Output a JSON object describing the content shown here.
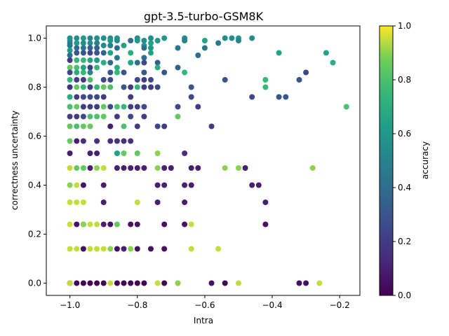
{
  "chart_data": {
    "type": "scatter",
    "title": "gpt-3.5-turbo-GSM8K",
    "xlabel": "Intra",
    "ylabel": "correctness uncertainty",
    "xlim": [
      -1.07,
      -0.14
    ],
    "ylim": [
      -0.05,
      1.05
    ],
    "x_ticks": [
      -1.0,
      -0.8,
      -0.6,
      -0.4,
      -0.2
    ],
    "x_tick_labels": [
      "−1.0",
      "−0.8",
      "−0.6",
      "−0.4",
      "−0.2"
    ],
    "y_ticks": [
      0.0,
      0.2,
      0.4,
      0.6,
      0.8,
      1.0
    ],
    "y_tick_labels": [
      "0.0",
      "0.2",
      "0.4",
      "0.6",
      "0.8",
      "1.0"
    ],
    "grid": false,
    "colorbar": {
      "label": "accuracy",
      "range": [
        0.0,
        1.0
      ],
      "ticks": [
        0.0,
        0.2,
        0.4,
        0.6,
        0.8,
        1.0
      ],
      "tick_labels": [
        "0.0",
        "0.2",
        "0.4",
        "0.6",
        "0.8",
        "1.0"
      ],
      "colormap": "viridis"
    },
    "points": [
      [
        -1.0,
        1.0,
        0.55
      ],
      [
        -1.0,
        0.99,
        0.6
      ],
      [
        -1.0,
        0.98,
        0.5
      ],
      [
        -1.0,
        0.97,
        0.45
      ],
      [
        -1.0,
        0.95,
        0.6
      ],
      [
        -1.0,
        0.93,
        0.4
      ],
      [
        -1.0,
        0.91,
        0.2
      ],
      [
        -1.0,
        0.88,
        0.85
      ],
      [
        -1.0,
        0.86,
        0.25
      ],
      [
        -1.0,
        0.83,
        0.75
      ],
      [
        -1.0,
        0.8,
        0.15
      ],
      [
        -1.0,
        0.76,
        0.7
      ],
      [
        -1.0,
        0.72,
        0.8
      ],
      [
        -1.0,
        0.68,
        0.2
      ],
      [
        -1.0,
        0.64,
        0.85
      ],
      [
        -1.0,
        0.58,
        0.85
      ],
      [
        -1.0,
        0.53,
        0.1
      ],
      [
        -1.0,
        0.47,
        0.95
      ],
      [
        -1.0,
        0.4,
        0.9
      ],
      [
        -1.0,
        0.33,
        0.95
      ],
      [
        -1.0,
        0.24,
        0.95
      ],
      [
        -1.0,
        0.14,
        0.95
      ],
      [
        -1.0,
        0.0,
        0.0
      ],
      [
        -1.0,
        0.0,
        0.95
      ],
      [
        -0.98,
        1.0,
        0.55
      ],
      [
        -0.98,
        0.98,
        0.6
      ],
      [
        -0.98,
        0.96,
        0.4
      ],
      [
        -0.98,
        0.94,
        0.3
      ],
      [
        -0.98,
        0.91,
        0.75
      ],
      [
        -0.98,
        0.88,
        0.8
      ],
      [
        -0.98,
        0.86,
        0.7
      ],
      [
        -0.98,
        0.83,
        0.2
      ],
      [
        -0.98,
        0.8,
        0.85
      ],
      [
        -0.98,
        0.76,
        0.2
      ],
      [
        -0.98,
        0.72,
        0.85
      ],
      [
        -0.98,
        0.68,
        0.2
      ],
      [
        -0.98,
        0.64,
        0.8
      ],
      [
        -0.98,
        0.58,
        0.1
      ],
      [
        -0.98,
        0.47,
        0.85
      ],
      [
        -0.98,
        0.4,
        0.95
      ],
      [
        -0.98,
        0.33,
        0.95
      ],
      [
        -0.98,
        0.24,
        0.05
      ],
      [
        -0.98,
        0.14,
        0.95
      ],
      [
        -0.98,
        0.0,
        0.0
      ],
      [
        -0.96,
        1.0,
        0.6
      ],
      [
        -0.96,
        0.98,
        0.55
      ],
      [
        -0.96,
        0.96,
        0.45
      ],
      [
        -0.96,
        0.94,
        0.3
      ],
      [
        -0.96,
        0.91,
        0.75
      ],
      [
        -0.96,
        0.88,
        0.65
      ],
      [
        -0.96,
        0.86,
        0.75
      ],
      [
        -0.96,
        0.83,
        0.2
      ],
      [
        -0.96,
        0.8,
        0.75
      ],
      [
        -0.96,
        0.76,
        0.25
      ],
      [
        -0.96,
        0.72,
        0.2
      ],
      [
        -0.96,
        0.68,
        0.25
      ],
      [
        -0.96,
        0.64,
        0.85
      ],
      [
        -0.96,
        0.58,
        0.15
      ],
      [
        -0.96,
        0.47,
        0.85
      ],
      [
        -0.96,
        0.4,
        0.05
      ],
      [
        -0.96,
        0.33,
        0.95
      ],
      [
        -0.96,
        0.24,
        0.2
      ],
      [
        -0.96,
        0.24,
        0.9
      ],
      [
        -0.96,
        0.14,
        0.05
      ],
      [
        -0.96,
        0.0,
        0.0
      ],
      [
        -0.94,
        1.0,
        0.5
      ],
      [
        -0.94,
        0.98,
        0.55
      ],
      [
        -0.94,
        0.96,
        0.35
      ],
      [
        -0.94,
        0.94,
        0.25
      ],
      [
        -0.94,
        0.91,
        0.65
      ],
      [
        -0.94,
        0.88,
        0.2
      ],
      [
        -0.94,
        0.86,
        0.5
      ],
      [
        -0.94,
        0.83,
        0.8
      ],
      [
        -0.94,
        0.8,
        0.2
      ],
      [
        -0.94,
        0.76,
        0.25
      ],
      [
        -0.94,
        0.72,
        0.2
      ],
      [
        -0.94,
        0.68,
        0.8
      ],
      [
        -0.94,
        0.64,
        0.85
      ],
      [
        -0.94,
        0.53,
        0.1
      ],
      [
        -0.94,
        0.47,
        0.1
      ],
      [
        -0.94,
        0.24,
        0.95
      ],
      [
        -0.94,
        0.14,
        0.95
      ],
      [
        -0.94,
        0.0,
        0.0
      ],
      [
        -0.92,
        1.0,
        0.55
      ],
      [
        -0.92,
        0.98,
        0.5
      ],
      [
        -0.92,
        0.96,
        0.35
      ],
      [
        -0.92,
        0.94,
        0.3
      ],
      [
        -0.92,
        0.91,
        0.6
      ],
      [
        -0.92,
        0.88,
        0.75
      ],
      [
        -0.92,
        0.8,
        0.75
      ],
      [
        -0.92,
        0.76,
        0.25
      ],
      [
        -0.92,
        0.72,
        0.2
      ],
      [
        -0.92,
        0.68,
        0.8
      ],
      [
        -0.92,
        0.58,
        0.15
      ],
      [
        -0.92,
        0.53,
        0.1
      ],
      [
        -0.92,
        0.47,
        0.9
      ],
      [
        -0.92,
        0.24,
        0.95
      ],
      [
        -0.92,
        0.14,
        0.95
      ],
      [
        -0.92,
        0.0,
        0.0
      ],
      [
        -0.9,
        1.0,
        0.55
      ],
      [
        -0.9,
        0.97,
        0.55
      ],
      [
        -0.9,
        0.94,
        0.35
      ],
      [
        -0.9,
        0.9,
        0.7
      ],
      [
        -0.9,
        0.83,
        0.25
      ],
      [
        -0.9,
        0.8,
        0.85
      ],
      [
        -0.9,
        0.76,
        0.2
      ],
      [
        -0.9,
        0.72,
        0.85
      ],
      [
        -0.9,
        0.68,
        0.85
      ],
      [
        -0.9,
        0.47,
        0.95
      ],
      [
        -0.9,
        0.4,
        0.1
      ],
      [
        -0.9,
        0.33,
        0.1
      ],
      [
        -0.9,
        0.24,
        0.1
      ],
      [
        -0.9,
        0.14,
        0.95
      ],
      [
        -0.9,
        0.0,
        0.0
      ],
      [
        -0.88,
        1.0,
        0.55
      ],
      [
        -0.88,
        0.99,
        0.6
      ],
      [
        -0.88,
        0.97,
        0.5
      ],
      [
        -0.88,
        0.94,
        0.65
      ],
      [
        -0.88,
        0.9,
        0.4
      ],
      [
        -0.88,
        0.86,
        0.3
      ],
      [
        -0.88,
        0.83,
        0.25
      ],
      [
        -0.88,
        0.8,
        0.8
      ],
      [
        -0.88,
        0.72,
        0.25
      ],
      [
        -0.88,
        0.64,
        0.1
      ],
      [
        -0.88,
        0.58,
        0.15
      ],
      [
        -0.88,
        0.24,
        0.05
      ],
      [
        -0.88,
        0.14,
        0.9
      ],
      [
        -0.88,
        0.0,
        0.95
      ],
      [
        -0.86,
        1.0,
        0.6
      ],
      [
        -0.86,
        0.99,
        0.55
      ],
      [
        -0.86,
        0.96,
        0.4
      ],
      [
        -0.86,
        0.92,
        0.45
      ],
      [
        -0.86,
        0.88,
        0.7
      ],
      [
        -0.86,
        0.86,
        0.75
      ],
      [
        -0.86,
        0.72,
        0.8
      ],
      [
        -0.86,
        0.68,
        0.2
      ],
      [
        -0.86,
        0.58,
        0.15
      ],
      [
        -0.86,
        0.53,
        0.75
      ],
      [
        -0.86,
        0.53,
        0.65
      ],
      [
        -0.86,
        0.47,
        0.1
      ],
      [
        -0.86,
        0.24,
        0.85
      ],
      [
        -0.86,
        0.14,
        0.05
      ],
      [
        -0.86,
        0.0,
        0.0
      ],
      [
        -0.84,
        0.97,
        0.65
      ],
      [
        -0.84,
        0.86,
        0.3
      ],
      [
        -0.84,
        0.8,
        0.3
      ],
      [
        -0.84,
        0.72,
        0.75
      ],
      [
        -0.84,
        0.64,
        0.8
      ],
      [
        -0.84,
        0.58,
        0.15
      ],
      [
        -0.84,
        0.53,
        0.85
      ],
      [
        -0.84,
        0.47,
        0.1
      ],
      [
        -0.84,
        0.14,
        0.1
      ],
      [
        -0.84,
        0.0,
        0.0
      ],
      [
        -0.82,
        0.99,
        0.4
      ],
      [
        -0.82,
        0.94,
        0.7
      ],
      [
        -0.82,
        0.9,
        0.65
      ],
      [
        -0.82,
        0.8,
        0.2
      ],
      [
        -0.82,
        0.76,
        0.2
      ],
      [
        -0.82,
        0.72,
        0.2
      ],
      [
        -0.82,
        0.68,
        0.25
      ],
      [
        -0.82,
        0.58,
        0.15
      ],
      [
        -0.82,
        0.47,
        0.1
      ],
      [
        -0.82,
        0.24,
        0.05
      ],
      [
        -0.82,
        0.14,
        0.9
      ],
      [
        -0.82,
        0.0,
        0.0
      ],
      [
        -0.8,
        1.0,
        0.55
      ],
      [
        -0.8,
        0.99,
        0.6
      ],
      [
        -0.8,
        0.9,
        0.4
      ],
      [
        -0.8,
        0.83,
        0.25
      ],
      [
        -0.8,
        0.8,
        0.75
      ],
      [
        -0.8,
        0.72,
        0.2
      ],
      [
        -0.8,
        0.64,
        0.2
      ],
      [
        -0.8,
        0.53,
        0.85
      ],
      [
        -0.8,
        0.47,
        0.1
      ],
      [
        -0.8,
        0.33,
        0.95
      ],
      [
        -0.8,
        0.24,
        0.05
      ],
      [
        -0.8,
        0.14,
        0.05
      ],
      [
        -0.8,
        0.0,
        0.0
      ],
      [
        -0.78,
        0.99,
        0.55
      ],
      [
        -0.78,
        0.97,
        0.6
      ],
      [
        -0.78,
        0.96,
        0.4
      ],
      [
        -0.78,
        0.92,
        0.4
      ],
      [
        -0.78,
        0.9,
        0.25
      ],
      [
        -0.78,
        0.86,
        0.3
      ],
      [
        -0.78,
        0.83,
        0.2
      ],
      [
        -0.78,
        0.8,
        0.2
      ],
      [
        -0.78,
        0.72,
        0.25
      ],
      [
        -0.78,
        0.68,
        0.2
      ],
      [
        -0.78,
        0.47,
        0.1
      ],
      [
        -0.78,
        0.0,
        0.0
      ],
      [
        -0.76,
        1.0,
        0.55
      ],
      [
        -0.76,
        0.98,
        0.65
      ],
      [
        -0.76,
        0.96,
        0.6
      ],
      [
        -0.76,
        0.94,
        0.65
      ],
      [
        -0.76,
        0.83,
        0.25
      ],
      [
        -0.76,
        0.8,
        0.2
      ],
      [
        -0.76,
        0.14,
        0.05
      ],
      [
        -0.74,
        0.99,
        0.6
      ],
      [
        -0.74,
        0.9,
        0.35
      ],
      [
        -0.74,
        0.88,
        0.7
      ],
      [
        -0.74,
        0.8,
        0.25
      ],
      [
        -0.74,
        0.64,
        0.25
      ],
      [
        -0.74,
        0.53,
        0.9
      ],
      [
        -0.74,
        0.47,
        0.9
      ],
      [
        -0.74,
        0.4,
        0.1
      ],
      [
        -0.74,
        0.33,
        0.1
      ],
      [
        -0.74,
        0.0,
        0.95
      ],
      [
        -0.72,
        1.0,
        0.6
      ],
      [
        -0.72,
        0.86,
        0.3
      ],
      [
        -0.72,
        0.64,
        0.2
      ],
      [
        -0.72,
        0.47,
        0.1
      ],
      [
        -0.72,
        0.4,
        0.1
      ],
      [
        -0.72,
        0.24,
        0.05
      ],
      [
        -0.72,
        0.14,
        0.05
      ],
      [
        -0.72,
        0.0,
        0.0
      ],
      [
        -0.7,
        0.47,
        0.1
      ],
      [
        -0.68,
        0.96,
        0.45
      ],
      [
        -0.68,
        0.88,
        0.35
      ],
      [
        -0.68,
        0.72,
        0.25
      ],
      [
        -0.68,
        0.68,
        0.85
      ],
      [
        -0.68,
        0.0,
        0.95
      ],
      [
        -0.68,
        0.0,
        0.9
      ],
      [
        -0.66,
        1.0,
        0.55
      ],
      [
        -0.66,
        0.99,
        0.5
      ],
      [
        -0.66,
        0.86,
        0.75
      ],
      [
        -0.66,
        0.53,
        0.15
      ],
      [
        -0.66,
        0.4,
        0.1
      ],
      [
        -0.66,
        0.33,
        0.1
      ],
      [
        -0.66,
        0.24,
        0.05
      ],
      [
        -0.64,
        0.8,
        0.3
      ],
      [
        -0.64,
        0.76,
        0.25
      ],
      [
        -0.64,
        0.47,
        0.1
      ],
      [
        -0.64,
        0.4,
        0.1
      ],
      [
        -0.64,
        0.24,
        0.95
      ],
      [
        -0.64,
        0.14,
        0.95
      ],
      [
        -0.62,
        0.93,
        0.4
      ],
      [
        -0.62,
        0.72,
        0.2
      ],
      [
        -0.62,
        0.47,
        0.1
      ],
      [
        -0.6,
        0.99,
        0.65
      ],
      [
        -0.6,
        0.96,
        0.45
      ],
      [
        -0.58,
        0.64,
        0.2
      ],
      [
        -0.58,
        0.0,
        0.05
      ],
      [
        -0.56,
        0.98,
        0.45
      ],
      [
        -0.56,
        0.14,
        0.95
      ],
      [
        -0.54,
        1.0,
        0.55
      ],
      [
        -0.54,
        0.83,
        0.3
      ],
      [
        -0.54,
        0.47,
        0.9
      ],
      [
        -0.54,
        0.0,
        0.0
      ],
      [
        -0.52,
        1.0,
        0.55
      ],
      [
        -0.5,
        1.0,
        0.6
      ],
      [
        -0.5,
        0.99,
        0.5
      ],
      [
        -0.5,
        0.47,
        0.9
      ],
      [
        -0.5,
        0.0,
        0.95
      ],
      [
        -0.48,
        0.47,
        0.1
      ],
      [
        -0.46,
        1.0,
        0.55
      ],
      [
        -0.46,
        0.76,
        0.25
      ],
      [
        -0.46,
        0.4,
        0.1
      ],
      [
        -0.44,
        0.4,
        0.1
      ],
      [
        -0.42,
        0.83,
        0.75
      ],
      [
        -0.42,
        0.8,
        0.75
      ],
      [
        -0.42,
        0.33,
        0.1
      ],
      [
        -0.42,
        0.24,
        0.05
      ],
      [
        -0.38,
        0.94,
        0.65
      ],
      [
        -0.38,
        0.76,
        0.3
      ],
      [
        -0.36,
        0.76,
        0.3
      ],
      [
        -0.32,
        0.83,
        0.3
      ],
      [
        -0.32,
        0.0,
        0.05
      ],
      [
        -0.3,
        0.86,
        0.25
      ],
      [
        -0.3,
        0.0,
        0.05
      ],
      [
        -0.28,
        0.47,
        0.9
      ],
      [
        -0.26,
        0.0,
        0.95
      ],
      [
        -0.24,
        0.94,
        0.65
      ],
      [
        -0.22,
        0.9,
        0.7
      ],
      [
        -0.18,
        0.72,
        0.8
      ]
    ]
  }
}
